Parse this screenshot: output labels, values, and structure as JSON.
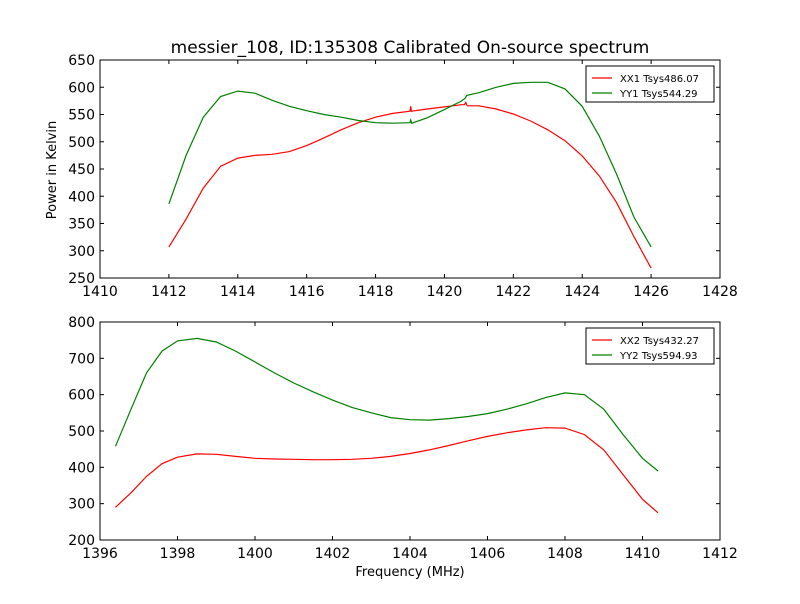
{
  "title": "messier_108, ID:135308 Calibrated On-source spectrum",
  "ylabel": "Power in Kelvin",
  "xlabel": "Frequency (MHz)",
  "colors": {
    "red": "#ff0000",
    "green": "#008000"
  },
  "chart_data": [
    {
      "type": "line",
      "xlim": [
        1410,
        1428
      ],
      "ylim": [
        250,
        650
      ],
      "xticks": [
        1410,
        1412,
        1414,
        1416,
        1418,
        1420,
        1422,
        1424,
        1426,
        1428
      ],
      "yticks": [
        250,
        300,
        350,
        400,
        450,
        500,
        550,
        600,
        650
      ],
      "legend_position": "top-right",
      "series": [
        {
          "name": "XX1 Tsys486.07",
          "color": "#ff0000",
          "x": [
            1412.0,
            1412.5,
            1413.0,
            1413.5,
            1414.0,
            1414.5,
            1415.0,
            1415.5,
            1416.0,
            1416.5,
            1417.0,
            1417.5,
            1418.0,
            1418.5,
            1419.0,
            1419.02,
            1419.04,
            1419.5,
            1420.0,
            1420.5,
            1420.58,
            1420.62,
            1420.66,
            1421.0,
            1421.5,
            1422.0,
            1422.5,
            1423.0,
            1423.5,
            1424.0,
            1424.5,
            1425.0,
            1425.5,
            1426.0
          ],
          "y": [
            307,
            358,
            415,
            455,
            470,
            475,
            477,
            482,
            493,
            507,
            522,
            535,
            545,
            552,
            556,
            565,
            556,
            560,
            564,
            568,
            568,
            572,
            566,
            566,
            560,
            551,
            538,
            522,
            502,
            474,
            437,
            388,
            326,
            268
          ]
        },
        {
          "name": "YY1 Tsys544.29",
          "color": "#008000",
          "x": [
            1412.0,
            1412.5,
            1413.0,
            1413.5,
            1414.0,
            1414.5,
            1415.0,
            1415.5,
            1416.0,
            1416.5,
            1417.0,
            1417.5,
            1418.0,
            1418.5,
            1419.0,
            1419.02,
            1419.05,
            1419.5,
            1420.0,
            1420.5,
            1420.6,
            1420.65,
            1421.0,
            1421.5,
            1422.0,
            1422.5,
            1423.0,
            1423.5,
            1424.0,
            1424.5,
            1425.0,
            1425.5,
            1426.0
          ],
          "y": [
            386,
            475,
            545,
            583,
            593,
            589,
            576,
            565,
            557,
            550,
            545,
            539,
            535,
            534,
            535,
            540,
            534,
            544,
            559,
            575,
            580,
            585,
            590,
            600,
            607,
            609,
            609,
            597,
            565,
            510,
            440,
            362,
            307
          ]
        }
      ]
    },
    {
      "type": "line",
      "xlim": [
        1396,
        1412
      ],
      "ylim": [
        200,
        800
      ],
      "xticks": [
        1396,
        1398,
        1400,
        1402,
        1404,
        1406,
        1408,
        1410,
        1412
      ],
      "yticks": [
        200,
        300,
        400,
        500,
        600,
        700,
        800
      ],
      "legend_position": "top-right",
      "series": [
        {
          "name": "XX2 Tsys432.27",
          "color": "#ff0000",
          "x": [
            1396.4,
            1396.8,
            1397.2,
            1397.6,
            1398.0,
            1398.5,
            1399.0,
            1399.5,
            1400.0,
            1400.5,
            1401.0,
            1401.5,
            1402.0,
            1402.5,
            1403.0,
            1403.5,
            1404.0,
            1404.5,
            1405.0,
            1405.5,
            1406.0,
            1406.5,
            1407.0,
            1407.5,
            1408.0,
            1408.5,
            1409.0,
            1409.5,
            1410.0,
            1410.4
          ],
          "y": [
            290,
            330,
            375,
            410,
            428,
            437,
            436,
            430,
            425,
            423,
            422,
            421,
            421,
            422,
            425,
            430,
            438,
            448,
            460,
            473,
            485,
            495,
            503,
            509,
            508,
            490,
            448,
            380,
            312,
            275
          ]
        },
        {
          "name": "YY2 Tsys594.93",
          "color": "#008000",
          "x": [
            1396.4,
            1396.8,
            1397.2,
            1397.6,
            1398.0,
            1398.5,
            1399.0,
            1399.5,
            1400.0,
            1400.5,
            1401.0,
            1401.5,
            1402.0,
            1402.5,
            1403.0,
            1403.5,
            1404.0,
            1404.5,
            1405.0,
            1405.5,
            1406.0,
            1406.5,
            1407.0,
            1407.5,
            1408.0,
            1408.5,
            1409.0,
            1409.5,
            1410.0,
            1410.4
          ],
          "y": [
            458,
            560,
            660,
            720,
            748,
            755,
            745,
            720,
            690,
            660,
            632,
            608,
            585,
            565,
            550,
            537,
            531,
            530,
            534,
            540,
            548,
            560,
            575,
            592,
            605,
            600,
            560,
            490,
            425,
            390
          ]
        }
      ]
    }
  ]
}
